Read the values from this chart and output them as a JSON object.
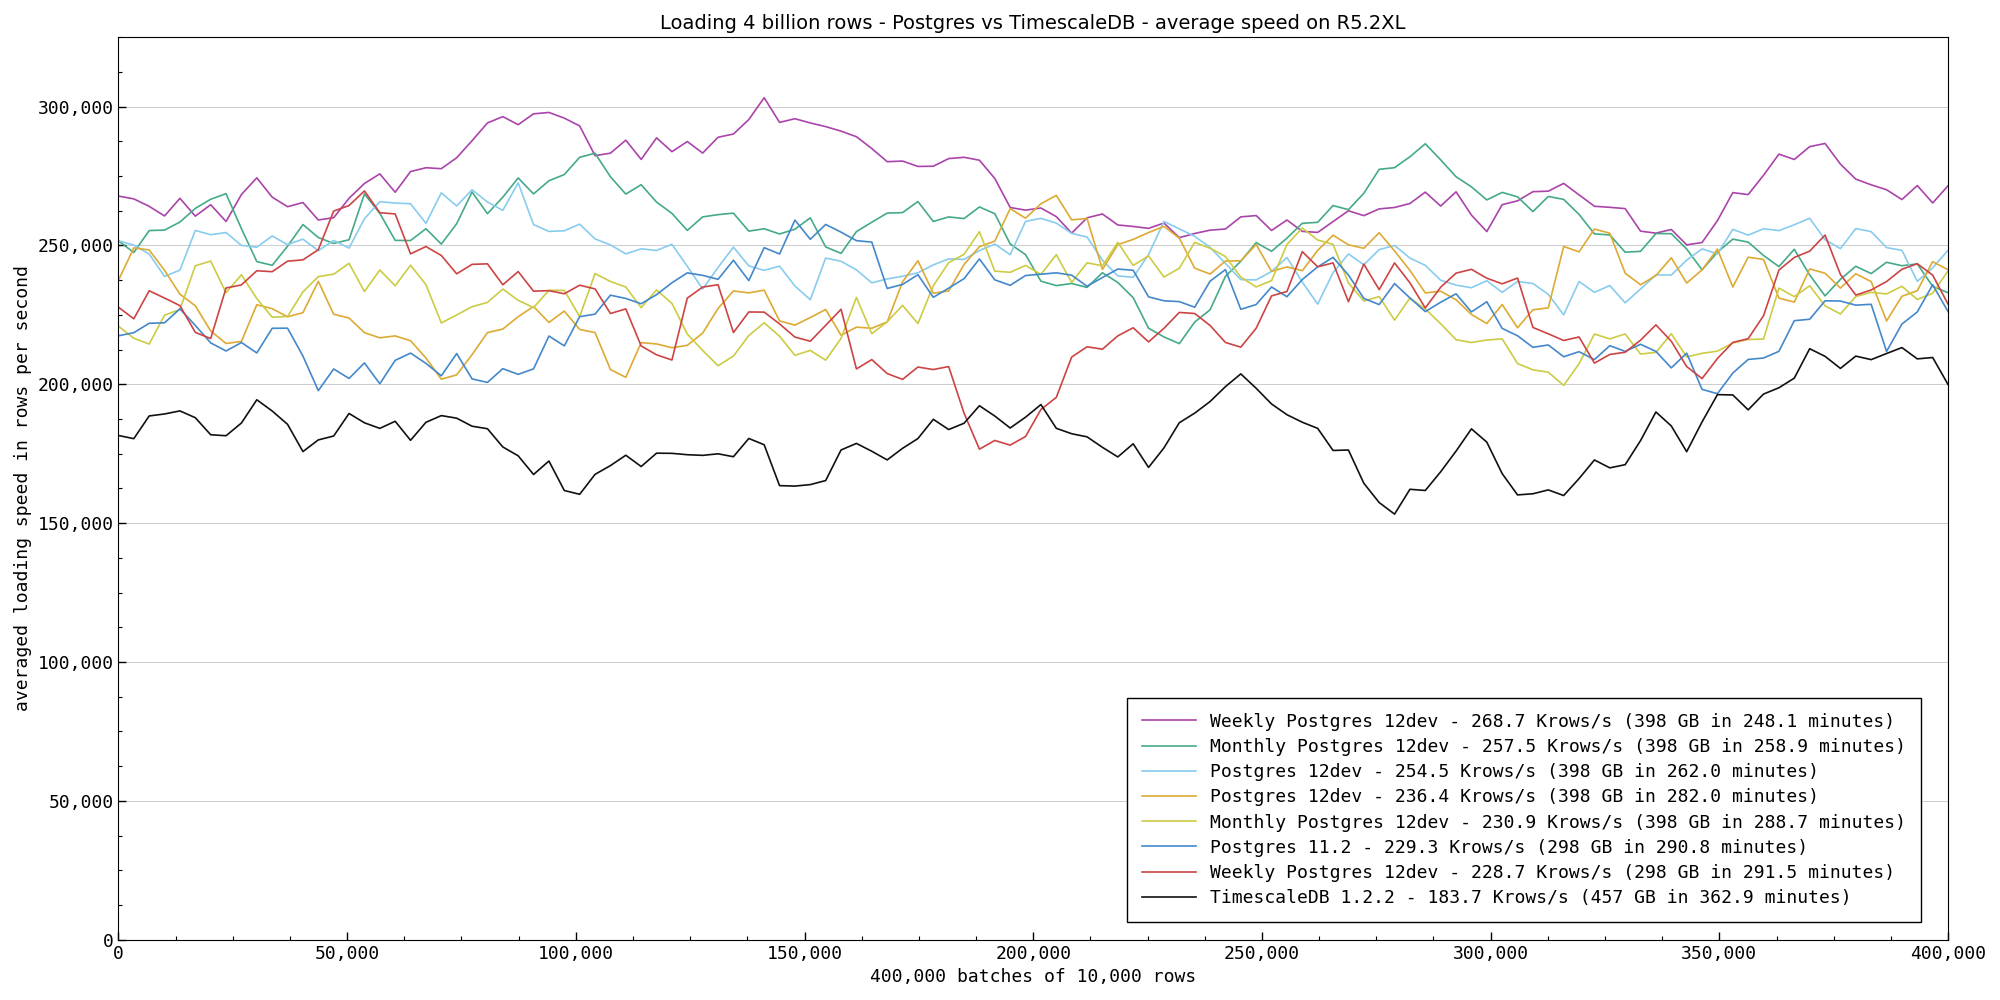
{
  "title": "Loading 4 billion rows - Postgres vs TimescaleDB - average speed on R5.2XL",
  "xlabel": "400,000 batches of 10,000 rows",
  "ylabel": "averaged loading speed in rows per second",
  "xlim": [
    0,
    400000
  ],
  "ylim": [
    0,
    325000
  ],
  "yticks": [
    0,
    50000,
    100000,
    150000,
    200000,
    250000,
    300000
  ],
  "xticks": [
    0,
    50000,
    100000,
    150000,
    200000,
    250000,
    300000,
    350000,
    400000
  ],
  "series": [
    {
      "label": "Weekly Postgres 12dev - 268.7 Krows/s (398 GB in 248.1 minutes)",
      "color": "#aa44aa",
      "mean": 268700,
      "std": 8000,
      "seed": 1
    },
    {
      "label": "Monthly Postgres 12dev - 257.5 Krows/s (398 GB in 258.9 minutes)",
      "color": "#44aa88",
      "mean": 257500,
      "std": 9000,
      "seed": 2
    },
    {
      "label": "Postgres 12dev - 254.5 Krows/s (398 GB in 262.0 minutes)",
      "color": "#88ccee",
      "mean": 254500,
      "std": 10000,
      "seed": 3
    },
    {
      "label": "Postgres 12dev - 236.4 Krows/s (398 GB in 282.0 minutes)",
      "color": "#ddaa33",
      "mean": 236400,
      "std": 12000,
      "seed": 4
    },
    {
      "label": "Monthly Postgres 12dev - 230.9 Krows/s (398 GB in 288.7 minutes)",
      "color": "#cccc44",
      "mean": 230900,
      "std": 11000,
      "seed": 5
    },
    {
      "label": "Postgres 11.2 - 229.3 Krows/s (298 GB in 290.8 minutes)",
      "color": "#4488cc",
      "mean": 229300,
      "std": 11000,
      "seed": 6
    },
    {
      "label": "Weekly Postgres 12dev - 228.7 Krows/s (298 GB in 291.5 minutes)",
      "color": "#cc4444",
      "mean": 228700,
      "std": 12000,
      "seed": 7
    },
    {
      "label": "TimescaleDB 1.2.2 - 183.7 Krows/s (457 GB in 362.9 minutes)",
      "color": "#111111",
      "mean": 183700,
      "std": 9000,
      "seed": 8
    }
  ],
  "n_points": 120,
  "background_color": "#ffffff",
  "grid_color": "#cccccc",
  "linewidth": 1.2,
  "legend_fontsize": 13,
  "title_fontsize": 14,
  "label_fontsize": 13,
  "tick_fontsize": 13
}
